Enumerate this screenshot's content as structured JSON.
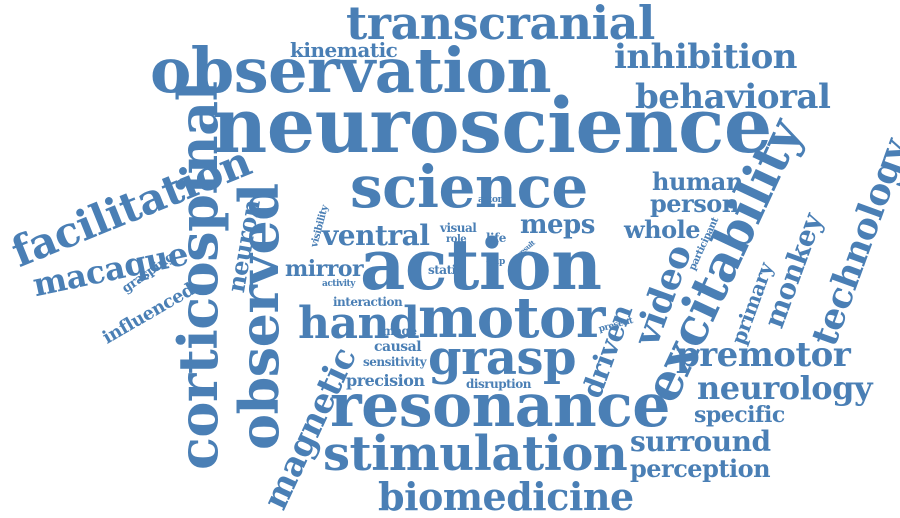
{
  "color": "#4a7fb5",
  "words": [
    {
      "text": "neuroscience"
    },
    {
      "text": "observation"
    },
    {
      "text": "transcranial"
    },
    {
      "text": "science"
    },
    {
      "text": "action"
    },
    {
      "text": "motor"
    },
    {
      "text": "hand"
    },
    {
      "text": "grasp"
    },
    {
      "text": "resonance"
    },
    {
      "text": "stimulation"
    },
    {
      "text": "biomedicine"
    },
    {
      "text": "excitability"
    },
    {
      "text": "technology"
    },
    {
      "text": "premotor"
    },
    {
      "text": "neurology"
    },
    {
      "text": "surround"
    },
    {
      "text": "perception"
    },
    {
      "text": "specific"
    },
    {
      "text": "inhibition"
    },
    {
      "text": "behavioral"
    },
    {
      "text": "corticospinal"
    },
    {
      "text": "observed"
    },
    {
      "text": "magnetic"
    },
    {
      "text": "facilitation"
    },
    {
      "text": "macaque"
    },
    {
      "text": "neuron"
    },
    {
      "text": "kinematic"
    },
    {
      "text": "human"
    },
    {
      "text": "person"
    },
    {
      "text": "whole"
    },
    {
      "text": "ventral"
    },
    {
      "text": "meps"
    },
    {
      "text": "mirror"
    },
    {
      "text": "video"
    },
    {
      "text": "monkey"
    },
    {
      "text": "driven"
    },
    {
      "text": "primary"
    },
    {
      "text": "precision"
    },
    {
      "text": "causal"
    },
    {
      "text": "image"
    },
    {
      "text": "sensitivity"
    },
    {
      "text": "disruption"
    },
    {
      "text": "interaction"
    },
    {
      "text": "static"
    },
    {
      "text": "activity"
    },
    {
      "text": "visual"
    },
    {
      "text": "role"
    },
    {
      "text": "life"
    },
    {
      "text": "grip"
    },
    {
      "text": "actor"
    },
    {
      "text": "visibility"
    },
    {
      "text": "participant"
    },
    {
      "text": "present"
    },
    {
      "text": "result"
    },
    {
      "text": "grasping"
    },
    {
      "text": "influenced"
    }
  ]
}
